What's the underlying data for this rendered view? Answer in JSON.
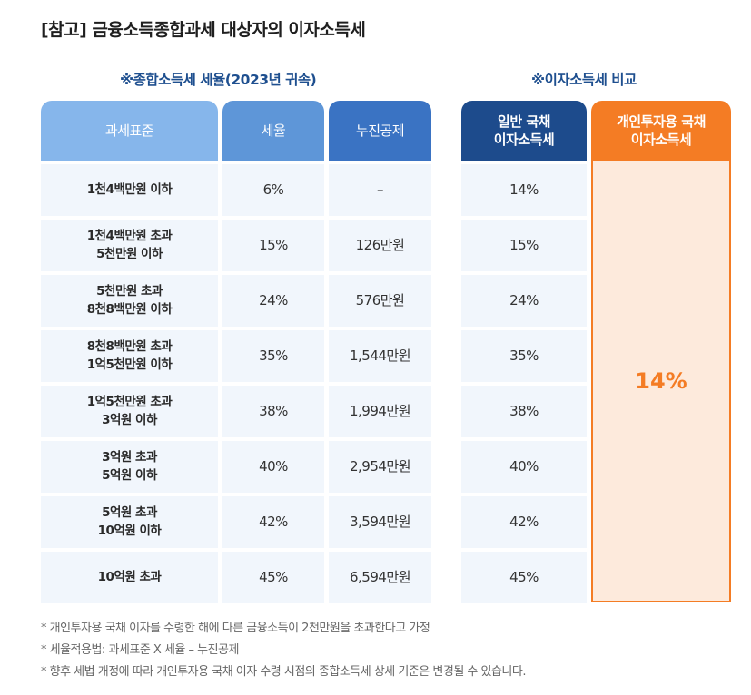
{
  "title": "[참고] 금융소득종합과세 대상자의 이자소득세",
  "left_section_title": "※종합소득세 세율(2023년 귀속)",
  "right_section_title": "※이자소득세 비교",
  "headers": {
    "tax_base": "과세표준",
    "tax_rate": "세율",
    "deduction": "누진공제",
    "general": [
      "일반 국채",
      "이자소득세"
    ],
    "personal": [
      "개인투자용 국채",
      "이자소득세"
    ]
  },
  "rows": [
    {
      "base": [
        "1천4백만원 이하"
      ],
      "rate": "6%",
      "deduction": "–",
      "general": "14%"
    },
    {
      "base": [
        "1천4백만원 초과",
        "5천만원 이하"
      ],
      "rate": "15%",
      "deduction": "126만원",
      "general": "15%"
    },
    {
      "base": [
        "5천만원 초과",
        "8천8백만원 이하"
      ],
      "rate": "24%",
      "deduction": "576만원",
      "general": "24%"
    },
    {
      "base": [
        "8천8백만원 초과",
        "1억5천만원 이하"
      ],
      "rate": "35%",
      "deduction": "1,544만원",
      "general": "35%"
    },
    {
      "base": [
        "1억5천만원 초과",
        "3억원 이하"
      ],
      "rate": "38%",
      "deduction": "1,994만원",
      "general": "38%"
    },
    {
      "base": [
        "3억원 초과",
        "5억원 이하"
      ],
      "rate": "40%",
      "deduction": "2,954만원",
      "general": "40%"
    },
    {
      "base": [
        "5억원 초과",
        "10억원 이하"
      ],
      "rate": "42%",
      "deduction": "3,594만원",
      "general": "42%"
    },
    {
      "base": [
        "10억원 초과"
      ],
      "rate": "45%",
      "deduction": "6,594만원",
      "general": "45%"
    }
  ],
  "personal_rate": "14%",
  "notes": [
    "* 개인투자용 국채 이자를 수령한 해에 다른 금융소득이 2천만원을 초과한다고 가정",
    "* 세율적용법: 과세표준 X 세율 – 누진공제",
    "* 향후 세법 개정에 따라 개인투자용 국채 이자 수령 시점의 종합소득세 상세 기준은 변경될 수 있습니다."
  ]
}
